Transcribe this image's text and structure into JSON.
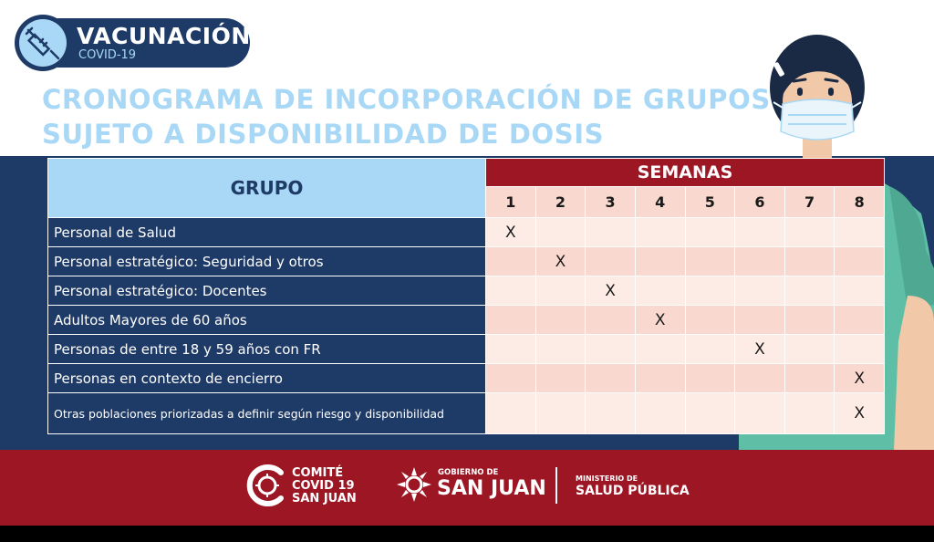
{
  "badge": {
    "title": "VACUNACIÓN",
    "subtitle": "COVID-19"
  },
  "headline": {
    "line1": "CRONOGRAMA DE INCORPORACIÓN DE GRUPOS",
    "line2": "SUJETO A DISPONIBILIDAD DE DOSIS"
  },
  "table": {
    "group_header": "GRUPO",
    "weeks_header": "SEMANAS",
    "weeks": [
      "1",
      "2",
      "3",
      "4",
      "5",
      "6",
      "7",
      "8"
    ],
    "rows": [
      {
        "label": "Personal de Salud",
        "marks": [
          "X",
          "",
          "",
          "",
          "",
          "",
          "",
          ""
        ]
      },
      {
        "label": "Personal estratégico: Seguridad y otros",
        "marks": [
          "",
          "X",
          "",
          "",
          "",
          "",
          "",
          ""
        ]
      },
      {
        "label": "Personal estratégico: Docentes",
        "marks": [
          "",
          "",
          "X",
          "",
          "",
          "",
          "",
          ""
        ]
      },
      {
        "label": "Adultos Mayores de 60 años",
        "marks": [
          "",
          "",
          "",
          "X",
          "",
          "",
          "",
          ""
        ]
      },
      {
        "label": "Personas de entre 18 y 59 años con FR",
        "marks": [
          "",
          "",
          "",
          "",
          "",
          "X",
          "",
          ""
        ]
      },
      {
        "label": "Personas en contexto de encierro",
        "marks": [
          "",
          "",
          "",
          "",
          "",
          "",
          "",
          "X"
        ]
      },
      {
        "label": "Otras poblaciones priorizadas a definir según riesgo y disponibilidad",
        "marks": [
          "",
          "",
          "",
          "",
          "",
          "",
          "",
          "X"
        ]
      }
    ]
  },
  "footer": {
    "comite": {
      "line1": "COMITÉ",
      "line2": "COVID 19",
      "line3": "SAN JUAN"
    },
    "gobierno": {
      "small": "GOBIERNO DE",
      "big": "SAN JUAN"
    },
    "ministerio": {
      "small": "MINISTERIO DE",
      "big": "SALUD PÚBLICA"
    }
  },
  "colors": {
    "navy": "#1e3a67",
    "light_blue": "#a8d8f5",
    "red": "#9c1624",
    "peach": "#f9d9cf",
    "mint": "#5fbfa6"
  },
  "icons": {
    "badge": "syringe-icon",
    "comite_logo": "circle-c-logo",
    "gobierno_logo": "sun-logo"
  }
}
